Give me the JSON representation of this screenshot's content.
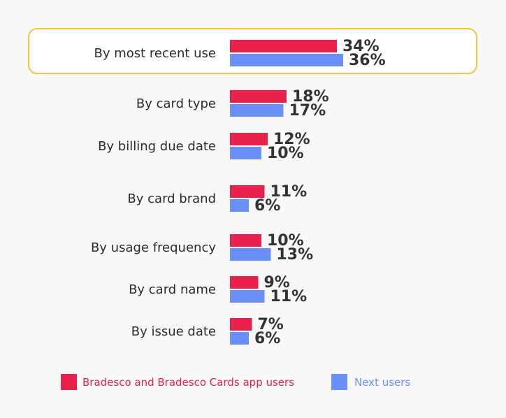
{
  "colors": {
    "series1": "#e8204a",
    "series2": "#6a8ff8",
    "highlight_border": "#f2c542",
    "highlight_fill": "#ffffff"
  },
  "chart_data": {
    "type": "bar",
    "orientation": "horizontal",
    "categories": [
      "By most recent use",
      "By card type",
      "By billing due date",
      "By card brand",
      "By usage frequency",
      "By card name",
      "By issue date"
    ],
    "series": [
      {
        "name": "Bradesco and Bradesco Cards app users",
        "values": [
          34,
          18,
          12,
          11,
          10,
          9,
          7
        ],
        "color": "#e8204a"
      },
      {
        "name": "Next users",
        "values": [
          36,
          17,
          10,
          6,
          13,
          11,
          6
        ],
        "color": "#6a8ff8"
      }
    ],
    "value_suffix": "%",
    "highlighted_category": "By most recent use",
    "legend_position": "bottom",
    "grid": false,
    "xlim": [
      0,
      36
    ]
  }
}
